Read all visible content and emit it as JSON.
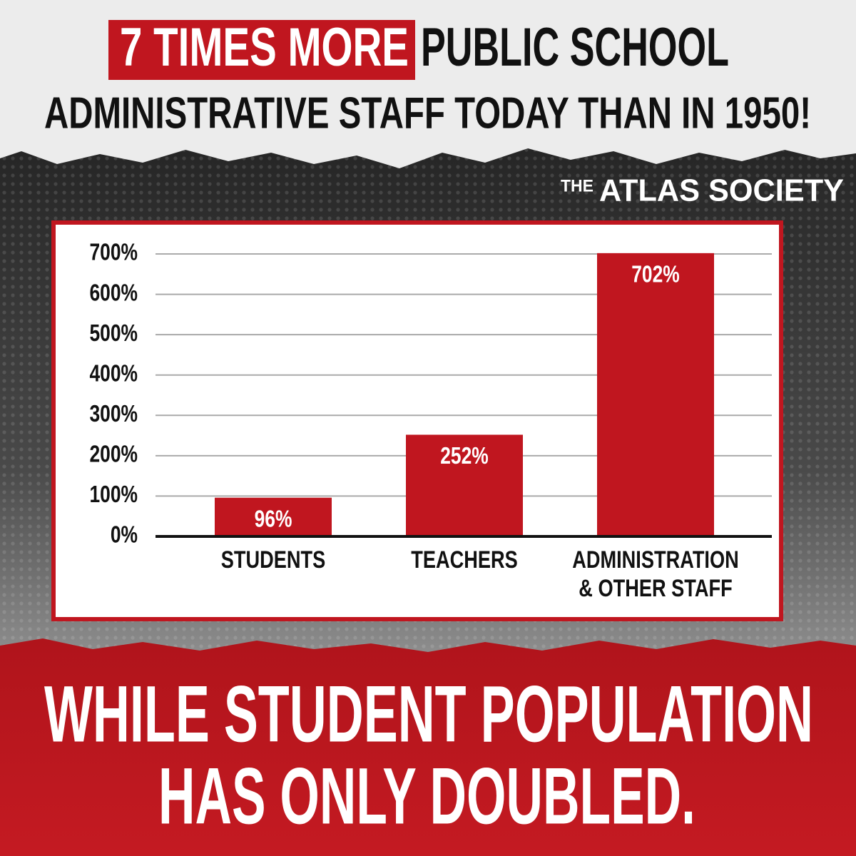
{
  "chart_data": {
    "type": "bar",
    "title": {
      "highlight": "7 TIMES MORE",
      "rest": "PUBLIC SCHOOL",
      "line2": "ADMINISTRATIVE STAFF TODAY THAN IN 1950!"
    },
    "brand": {
      "small": "THE",
      "name": "ATLAS SOCIETY"
    },
    "categories": [
      "STUDENTS",
      "TEACHERS",
      "ADMINISTRATION & OTHER STAFF"
    ],
    "values": [
      96,
      252,
      702
    ],
    "value_labels": [
      "96%",
      "252%",
      "702%"
    ],
    "color": "#c0161f",
    "ylim": [
      0,
      700
    ],
    "yticks": [
      {
        "value": 0,
        "label": "0%"
      },
      {
        "value": 100,
        "label": "100%"
      },
      {
        "value": 200,
        "label": "200%"
      },
      {
        "value": 300,
        "label": "300%"
      },
      {
        "value": 400,
        "label": "400%"
      },
      {
        "value": 500,
        "label": "500%"
      },
      {
        "value": 600,
        "label": "600%"
      },
      {
        "value": 700,
        "label": "700%"
      }
    ],
    "grid": true,
    "footer": [
      "WHILE STUDENT POPULATION",
      "HAS ONLY DOUBLED."
    ]
  }
}
